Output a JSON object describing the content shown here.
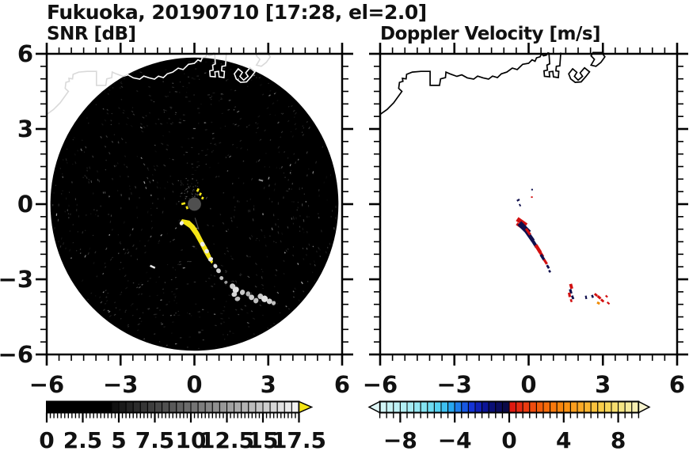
{
  "figure": {
    "title": "Fukuoka, 20190710 [17:28, el=2.0]",
    "bg": "#ffffff"
  },
  "chart_data": {
    "type": "heatmap",
    "description": "Dual-panel radar PPI display: left panel SNR [dB] on black scan disk, right panel Doppler Velocity [m/s] on white background, both with Hakata-bay coastline overlay and discrete colorbars.",
    "x_range": [
      -6,
      6
    ],
    "y_range": [
      -6,
      6
    ],
    "x_ticks": {
      "values": [
        -6,
        -3,
        0,
        3,
        6
      ],
      "labels": [
        "−6",
        "−3",
        "0",
        "3",
        "6"
      ]
    },
    "y_ticks": {
      "values": [
        6,
        3,
        0,
        -3,
        -6
      ],
      "labels": [
        "6",
        "3",
        "0",
        "−3",
        "−6"
      ]
    },
    "minor_tick_step": 0.5,
    "panels": [
      {
        "id": "snr",
        "title": "SNR [dB]",
        "has_y_labels": true,
        "background": "#ffffff",
        "scan_disk": {
          "cx": 0,
          "cy": 0,
          "r": 5.85,
          "fill": "#000000"
        },
        "coast_color_over_disk": "#ffffff",
        "coast_color_outside": "#d9d9d9",
        "colorbar": {
          "min": 0,
          "max": 17.5,
          "cell_step": 0.5,
          "minor_tick_step": 0.25,
          "major_ticks": [
            0,
            2.5,
            5,
            7.5,
            10,
            12.5,
            15,
            17.5
          ],
          "labels": [
            "0",
            "2.5",
            "5",
            "7.5",
            "10",
            "12.5",
            "15",
            "17.5"
          ],
          "ramp_floor": "#000000",
          "ramp_top": "#fafafa",
          "over_arrow_color": "#f5e616"
        },
        "echoes": {
          "streak_fill": "#f5e616",
          "streak_pts": [
            [
              -0.5,
              -0.6
            ],
            [
              -0.2,
              -0.66
            ],
            [
              0.0,
              -0.85
            ],
            [
              0.18,
              -1.12
            ],
            [
              0.35,
              -1.45
            ],
            [
              0.52,
              -1.75
            ],
            [
              0.66,
              -2.05
            ],
            [
              0.76,
              -2.3
            ],
            [
              0.7,
              -2.38
            ],
            [
              0.55,
              -2.2
            ],
            [
              0.4,
              -1.95
            ],
            [
              0.22,
              -1.6
            ],
            [
              0.02,
              -1.25
            ],
            [
              -0.2,
              -0.95
            ],
            [
              -0.45,
              -0.78
            ],
            [
              -0.56,
              -0.68
            ]
          ],
          "white_patches": [
            [
              0.33,
              -1.6,
              0.1,
              0.04,
              58
            ],
            [
              0.5,
              -1.88,
              0.09,
              0.04,
              58
            ],
            [
              0.66,
              -2.2,
              0.08,
              0.045,
              58
            ],
            [
              -0.52,
              -0.76,
              0.08,
              0.04,
              30
            ]
          ],
          "trail_blobs": [
            [
              0.85,
              -2.47,
              0.09,
              0.035,
              55,
              "#e0e0e0"
            ],
            [
              0.98,
              -2.66,
              0.1,
              0.04,
              55,
              "#cfcfcf"
            ],
            [
              1.1,
              -2.95,
              0.08,
              0.035,
              55,
              "#bdbdbd"
            ],
            [
              1.28,
              -3.12,
              0.06,
              0.03,
              55,
              "#9c9c9c"
            ],
            [
              1.55,
              -3.28,
              0.12,
              0.05,
              40,
              "#cfcfcf"
            ],
            [
              1.68,
              -3.42,
              0.12,
              0.06,
              50,
              "#e4e4e4"
            ],
            [
              1.62,
              -3.6,
              0.1,
              0.05,
              70,
              "#d6d6d6"
            ],
            [
              1.75,
              -3.78,
              0.09,
              0.05,
              70,
              "#bdbdbd"
            ],
            [
              1.95,
              -3.52,
              0.1,
              0.05,
              20,
              "#c8c8c8"
            ],
            [
              2.18,
              -3.58,
              0.09,
              0.045,
              10,
              "#b4b4b4"
            ],
            [
              2.32,
              -3.72,
              0.11,
              0.05,
              25,
              "#cfcfcf"
            ],
            [
              2.5,
              -3.85,
              0.1,
              0.05,
              25,
              "#c0c0c0"
            ],
            [
              2.68,
              -3.68,
              0.11,
              0.05,
              15,
              "#cacaca"
            ],
            [
              2.85,
              -3.78,
              0.13,
              0.06,
              20,
              "#e0e0e0"
            ],
            [
              3.05,
              -3.88,
              0.11,
              0.05,
              25,
              "#d2d2d2"
            ],
            [
              3.22,
              -3.95,
              0.08,
              0.04,
              25,
              "#bfbfbf"
            ]
          ],
          "center_blob": {
            "x": 0,
            "y": 0,
            "r": 0.27,
            "color": "#4f4f4f"
          },
          "yellow_marks": [
            [
              0.14,
              0.56,
              0.14,
              -65
            ],
            [
              0.24,
              0.4,
              0.12,
              -65
            ],
            [
              0.33,
              0.24,
              0.1,
              -65
            ],
            [
              -0.45,
              0.02,
              0.16,
              -15
            ],
            [
              -0.3,
              -0.14,
              0.12,
              70
            ]
          ],
          "misc_dashes": [
            [
              -1.7,
              -2.5,
              0.22,
              25,
              "#e8e8e8",
              2.5
            ],
            [
              2.7,
              0.95,
              0.18,
              15,
              "#8a8a8a",
              2
            ],
            [
              0.1,
              -0.78,
              0.5,
              72,
              "#555555",
              1
            ]
          ]
        }
      },
      {
        "id": "doppler",
        "title": "Doppler Velocity [m/s]",
        "has_y_labels": false,
        "background": "#ffffff",
        "coast_color": "#000000",
        "colorbar": {
          "min": -9.5,
          "max": 9.5,
          "cell_step": 0.5,
          "minor_tick_step": 0.5,
          "major_ticks": [
            -8,
            -4,
            0,
            4,
            8
          ],
          "labels": [
            "−8",
            "−4",
            "0",
            "4",
            "8"
          ],
          "under_arrow_color": "#dff6f6",
          "over_arrow_color": "#f8f4cf",
          "neg_stops": [
            [
              -9.5,
              "#d8f6f6"
            ],
            [
              -7.5,
              "#aeeef4"
            ],
            [
              -6,
              "#7ce1f2"
            ],
            [
              -5,
              "#49cdf2"
            ],
            [
              -4.25,
              "#28a7f0"
            ],
            [
              -3.5,
              "#1a6ae8"
            ],
            [
              -2.75,
              "#1433d6"
            ],
            [
              -2,
              "#0c17a8"
            ],
            [
              -1.25,
              "#0a0f76"
            ],
            [
              -0.5,
              "#0b0b52"
            ],
            [
              0,
              "#0a0a3e"
            ]
          ],
          "pos_stops": [
            [
              0,
              "#dc1010"
            ],
            [
              1,
              "#e93311"
            ],
            [
              2.5,
              "#f4650a"
            ],
            [
              4,
              "#f98c0e"
            ],
            [
              5.5,
              "#fcb02b"
            ],
            [
              7,
              "#f8d44f"
            ],
            [
              8.5,
              "#f4e88e"
            ],
            [
              9.5,
              "#f6f0bc"
            ]
          ]
        },
        "echo_colors": {
          "n": "#10104e",
          "r": "#d21010",
          "o": "#ef8a00"
        },
        "echo_cells": [
          [
            -0.28,
            -0.72,
            0.45,
            0.18,
            35,
            "r"
          ],
          [
            -0.38,
            -0.85,
            0.25,
            0.12,
            35,
            "r"
          ],
          [
            -0.18,
            -0.95,
            0.55,
            0.22,
            45,
            "n"
          ],
          [
            0.05,
            -1.28,
            0.45,
            0.16,
            55,
            "n"
          ],
          [
            -0.02,
            -1.1,
            0.3,
            0.1,
            55,
            "r"
          ],
          [
            0.22,
            -1.55,
            0.4,
            0.13,
            58,
            "n"
          ],
          [
            0.38,
            -1.78,
            0.35,
            0.14,
            58,
            "r"
          ],
          [
            0.5,
            -1.98,
            0.3,
            0.12,
            58,
            "r"
          ],
          [
            0.56,
            -2.12,
            0.25,
            0.11,
            58,
            "n"
          ],
          [
            0.68,
            -2.3,
            0.22,
            0.1,
            58,
            "r"
          ],
          [
            0.78,
            -2.5,
            0.15,
            0.09,
            58,
            "n"
          ],
          [
            0.85,
            -2.68,
            0.1,
            0.08,
            58,
            "n"
          ],
          [
            -0.42,
            0.16,
            0.12,
            0.07,
            -30,
            "n"
          ],
          [
            -0.35,
            -0.04,
            0.1,
            0.06,
            60,
            "n"
          ],
          [
            0.14,
            0.58,
            0.07,
            0.06,
            0,
            "n"
          ],
          [
            0.13,
            0.28,
            0.07,
            0.06,
            0,
            "r"
          ],
          [
            1.72,
            -3.28,
            0.2,
            0.12,
            75,
            "r"
          ],
          [
            1.7,
            -3.48,
            0.18,
            0.1,
            75,
            "n"
          ],
          [
            1.65,
            -3.62,
            0.18,
            0.1,
            80,
            "r"
          ],
          [
            1.78,
            -3.72,
            0.15,
            0.09,
            70,
            "n"
          ],
          [
            1.72,
            -3.85,
            0.12,
            0.08,
            70,
            "r"
          ],
          [
            2.32,
            -3.72,
            0.14,
            0.07,
            80,
            "n"
          ],
          [
            2.58,
            -3.68,
            0.12,
            0.08,
            70,
            "n"
          ],
          [
            2.72,
            -3.62,
            0.14,
            0.09,
            40,
            "r"
          ],
          [
            2.85,
            -3.72,
            0.16,
            0.1,
            40,
            "r"
          ],
          [
            2.82,
            -3.95,
            0.12,
            0.09,
            30,
            "o"
          ],
          [
            2.98,
            -3.85,
            0.14,
            0.09,
            40,
            "r"
          ],
          [
            3.15,
            -3.68,
            0.1,
            0.07,
            40,
            "r"
          ],
          [
            3.22,
            -3.95,
            0.12,
            0.07,
            40,
            "r"
          ]
        ]
      }
    ],
    "coastline": {
      "main": [
        [
          -6,
          3.58
        ],
        [
          -5.72,
          3.78
        ],
        [
          -5.45,
          4.05
        ],
        [
          -5.12,
          4.5
        ],
        [
          -5.25,
          4.62
        ],
        [
          -5.22,
          4.86
        ],
        [
          -5.08,
          4.9
        ],
        [
          -5.1,
          5.02
        ],
        [
          -4.95,
          5.0
        ],
        [
          -4.93,
          5.18
        ],
        [
          -4.7,
          5.27
        ],
        [
          -4.35,
          5.3
        ],
        [
          -3.98,
          5.3
        ],
        [
          -3.98,
          4.74
        ],
        [
          -3.6,
          4.74
        ],
        [
          -3.56,
          5.0
        ],
        [
          -3.36,
          5.05
        ],
        [
          -3.34,
          5.27
        ],
        [
          -3.18,
          5.2
        ],
        [
          -2.9,
          5.1
        ],
        [
          -2.7,
          5.16
        ],
        [
          -2.48,
          5.04
        ],
        [
          -2.22,
          4.99
        ],
        [
          -2.06,
          5.11
        ],
        [
          -1.84,
          5.04
        ],
        [
          -1.62,
          4.99
        ],
        [
          -1.46,
          5.11
        ],
        [
          -1.26,
          5.05
        ],
        [
          -1.1,
          5.2
        ],
        [
          -0.88,
          5.27
        ],
        [
          -0.66,
          5.43
        ],
        [
          -0.46,
          5.37
        ],
        [
          -0.24,
          5.58
        ],
        [
          0.0,
          5.62
        ],
        [
          0.14,
          5.76
        ],
        [
          0.26,
          5.7
        ],
        [
          0.32,
          5.84
        ],
        [
          0.46,
          5.88
        ],
        [
          0.52,
          6.0
        ],
        [
          0.6,
          5.92
        ],
        [
          0.72,
          5.95
        ],
        [
          0.8,
          6.06
        ]
      ],
      "structures": [
        [
          [
            0.82,
            6.05
          ],
          [
            0.85,
            5.6
          ],
          [
            0.74,
            5.55
          ],
          [
            0.76,
            5.35
          ],
          [
            0.62,
            5.32
          ],
          [
            0.64,
            5.1
          ],
          [
            0.85,
            5.08
          ],
          [
            0.83,
            5.28
          ],
          [
            0.98,
            5.3
          ],
          [
            1.0,
            5.08
          ],
          [
            1.2,
            5.05
          ],
          [
            1.22,
            5.3
          ],
          [
            1.1,
            5.32
          ],
          [
            1.12,
            5.5
          ],
          [
            1.26,
            5.52
          ],
          [
            1.3,
            6.05
          ]
        ],
        [
          [
            1.62,
            5.2
          ],
          [
            1.78,
            5.4
          ],
          [
            1.95,
            5.26
          ],
          [
            1.85,
            5.1
          ],
          [
            2.0,
            4.95
          ],
          [
            2.18,
            5.1
          ],
          [
            2.08,
            5.24
          ],
          [
            2.26,
            5.44
          ],
          [
            2.46,
            5.28
          ],
          [
            2.32,
            5.1
          ],
          [
            2.12,
            4.88
          ],
          [
            1.88,
            4.86
          ],
          [
            1.7,
            5.0
          ],
          [
            1.62,
            5.2
          ]
        ],
        [
          [
            2.52,
            5.55
          ],
          [
            2.66,
            5.78
          ],
          [
            2.52,
            5.92
          ],
          [
            2.6,
            6.05
          ],
          [
            2.95,
            6.05
          ],
          [
            3.08,
            5.88
          ],
          [
            2.92,
            5.66
          ],
          [
            2.72,
            5.5
          ],
          [
            2.52,
            5.55
          ]
        ]
      ]
    }
  }
}
